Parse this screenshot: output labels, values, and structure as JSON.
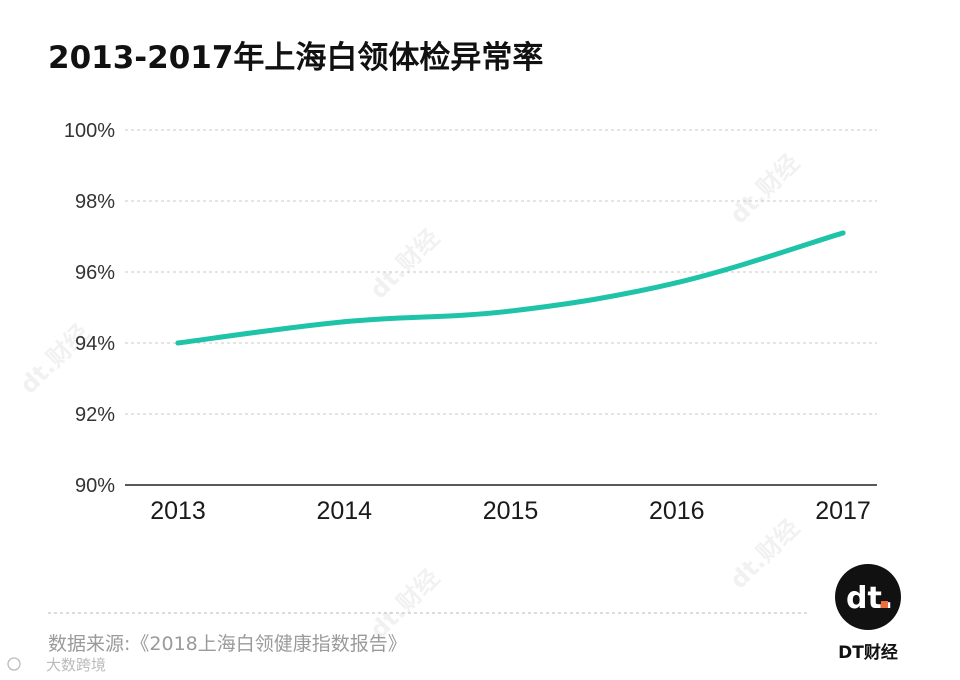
{
  "chart_data": {
    "type": "line",
    "title": "2013-2017年上海白领体检异常率",
    "categories": [
      "2013",
      "2014",
      "2015",
      "2016",
      "2017"
    ],
    "series": [
      {
        "values": [
          94.0,
          94.6,
          94.9,
          95.7,
          97.1
        ]
      }
    ],
    "y_ticks": [
      "90%",
      "92%",
      "94%",
      "96%",
      "98%",
      "100%"
    ],
    "ylim": [
      90,
      100
    ],
    "y_unit": "%",
    "grid": "horizontal-dashed",
    "line_color": "#1fc3a8"
  },
  "source": "数据来源:《2018上海白领健康指数报告》",
  "brand": {
    "logo_text": "dt.",
    "name": "DT财经",
    "dot_color": "#f26b3a"
  },
  "watermark": {
    "text": "dt.财经",
    "corner_text": "大数跨境"
  }
}
